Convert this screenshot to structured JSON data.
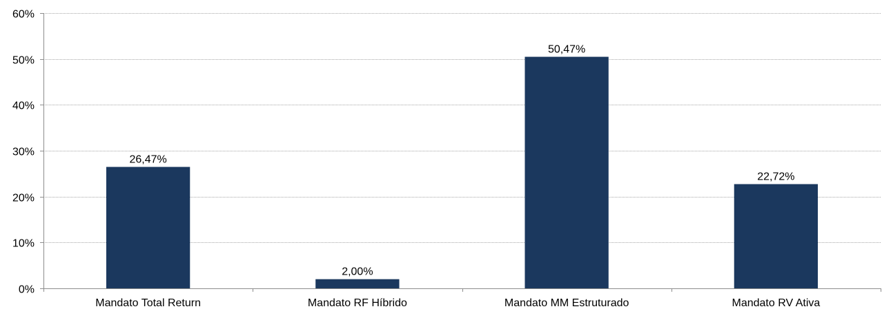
{
  "chart_data": {
    "type": "bar",
    "title": "",
    "xlabel": "",
    "ylabel": "",
    "categories": [
      "Mandato Total Return",
      "Mandato RF Híbrido",
      "Mandato MM Estruturado",
      "Mandato RV Ativa"
    ],
    "values": [
      26.47,
      2.0,
      50.47,
      22.72
    ],
    "value_labels": [
      "26,47%",
      "2,00%",
      "50,47%",
      "22,72%"
    ],
    "ylim": [
      0,
      60
    ],
    "yticks": [
      0,
      10,
      20,
      30,
      40,
      50,
      60
    ],
    "ytick_labels": [
      "0%",
      "10%",
      "20%",
      "30%",
      "40%",
      "50%",
      "60%"
    ],
    "grid": true,
    "legend": "none",
    "bar_color": "#1b385e"
  }
}
